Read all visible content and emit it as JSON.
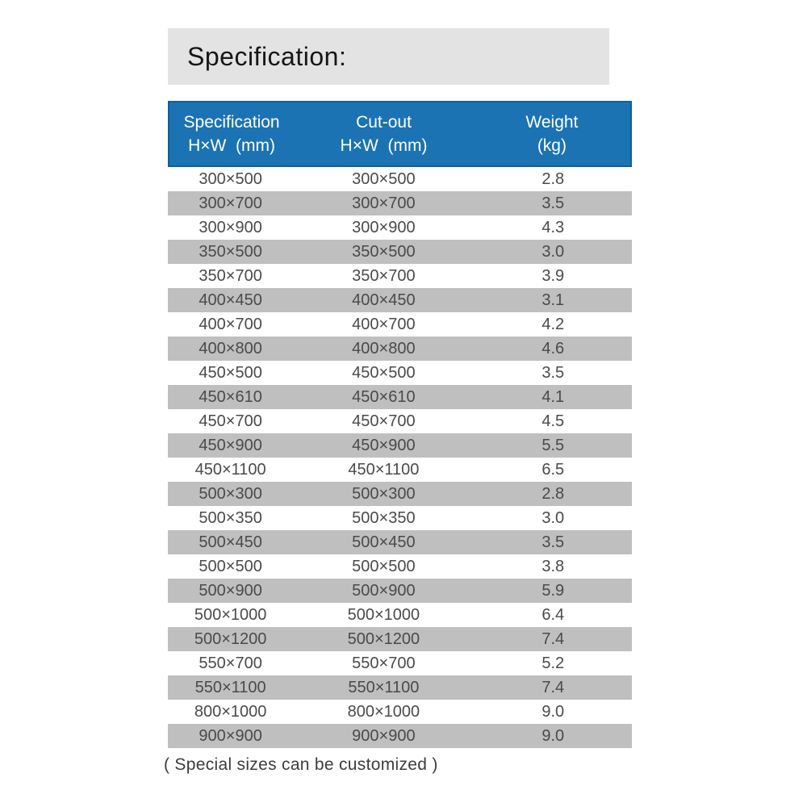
{
  "page_title": "Specification:",
  "footer_note": "( Special sizes can be customized )",
  "colors": {
    "header_bg": "#1b73b4",
    "header_border": "#0f5f9d",
    "header_text": "#ffffff",
    "stripe_bg": "#bfbfbf",
    "row_bg": "#ffffff",
    "title_banner_bg": "#e3e3e3",
    "body_text": "#4a4a4a"
  },
  "table": {
    "columns": [
      {
        "line1": "Specification",
        "line2": "H×W  (mm)"
      },
      {
        "line1": "Cut-out",
        "line2": "H×W  (mm)"
      },
      {
        "line1": "Weight",
        "line2": "(kg)"
      }
    ]
  },
  "chart_data": {
    "type": "table",
    "title": "Specification:",
    "columns": [
      "Specification H×W (mm)",
      "Cut-out H×W (mm)",
      "Weight (kg)"
    ],
    "rows": [
      [
        "300×500",
        "300×500",
        "2.8"
      ],
      [
        "300×700",
        "300×700",
        "3.5"
      ],
      [
        "300×900",
        "300×900",
        "4.3"
      ],
      [
        "350×500",
        "350×500",
        "3.0"
      ],
      [
        "350×700",
        "350×700",
        "3.9"
      ],
      [
        "400×450",
        "400×450",
        "3.1"
      ],
      [
        "400×700",
        "400×700",
        "4.2"
      ],
      [
        "400×800",
        "400×800",
        "4.6"
      ],
      [
        "450×500",
        "450×500",
        "3.5"
      ],
      [
        "450×610",
        "450×610",
        "4.1"
      ],
      [
        "450×700",
        "450×700",
        "4.5"
      ],
      [
        "450×900",
        "450×900",
        "5.5"
      ],
      [
        "450×1100",
        "450×1100",
        "6.5"
      ],
      [
        "500×300",
        "500×300",
        "2.8"
      ],
      [
        "500×350",
        "500×350",
        "3.0"
      ],
      [
        "500×450",
        "500×450",
        "3.5"
      ],
      [
        "500×500",
        "500×500",
        "3.8"
      ],
      [
        "500×900",
        "500×900",
        "5.9"
      ],
      [
        "500×1000",
        "500×1000",
        "6.4"
      ],
      [
        "500×1200",
        "500×1200",
        "7.4"
      ],
      [
        "550×700",
        "550×700",
        "5.2"
      ],
      [
        "550×1100",
        "550×1100",
        "7.4"
      ],
      [
        "800×1000",
        "800×1000",
        "9.0"
      ],
      [
        "900×900",
        "900×900",
        "9.0"
      ]
    ],
    "annotations": [
      "( Special sizes can be customized )"
    ],
    "stripe_pattern": "even rows white, odd rows gray, starting white"
  }
}
